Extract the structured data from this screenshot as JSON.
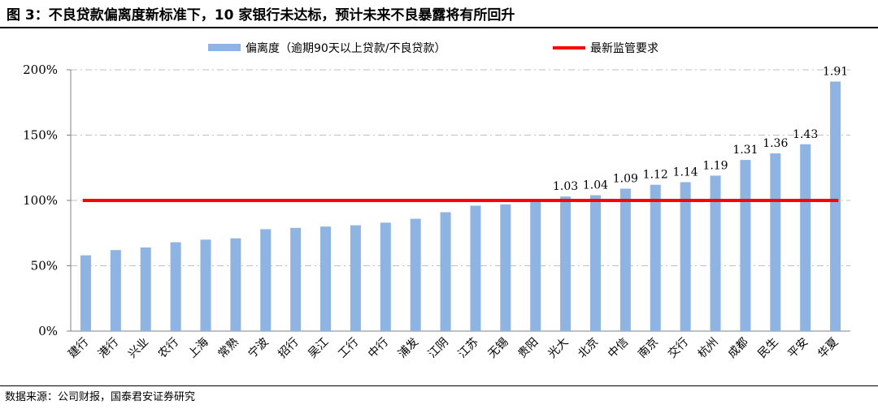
{
  "figure": {
    "title": "图 3：不良贷款偏离度新标准下，10 家银行未达标，预计未来不良暴露将有所回升",
    "source": "数据来源：公司财报，国泰君安证券研究"
  },
  "colors": {
    "bar": "#8EB4E3",
    "line": "#FF0000",
    "grid": "#bfbfbf",
    "axis": "#808080"
  },
  "chart_data": {
    "type": "bar",
    "categories": [
      "建行",
      "港行",
      "兴业",
      "农行",
      "上海",
      "常熟",
      "宁波",
      "招行",
      "吴江",
      "工行",
      "中行",
      "浦发",
      "江阴",
      "江苏",
      "无锡",
      "贵阳",
      "光大",
      "北京",
      "中信",
      "南京",
      "交行",
      "杭州",
      "成都",
      "民生",
      "平安",
      "华夏"
    ],
    "series": [
      {
        "name": "偏离度（逾期90天以上贷款/不良贷款）",
        "values": [
          0.58,
          0.62,
          0.64,
          0.68,
          0.7,
          0.71,
          0.78,
          0.79,
          0.8,
          0.81,
          0.83,
          0.86,
          0.91,
          0.96,
          0.97,
          0.99,
          1.03,
          1.04,
          1.09,
          1.12,
          1.14,
          1.19,
          1.31,
          1.36,
          1.43,
          1.91
        ]
      }
    ],
    "reference_line": {
      "name": "最新监管要求",
      "value": 1.0
    },
    "data_labels": [
      "1.03",
      "1.04",
      "1.09",
      "1.12",
      "1.14",
      "1.19",
      "1.31",
      "1.36",
      "1.43",
      "1.91"
    ],
    "y_ticks": [
      "0%",
      "50%",
      "100%",
      "150%",
      "200%"
    ],
    "ylim": [
      0,
      2
    ],
    "legend_position": "top",
    "grid": "horizontal dashed"
  }
}
